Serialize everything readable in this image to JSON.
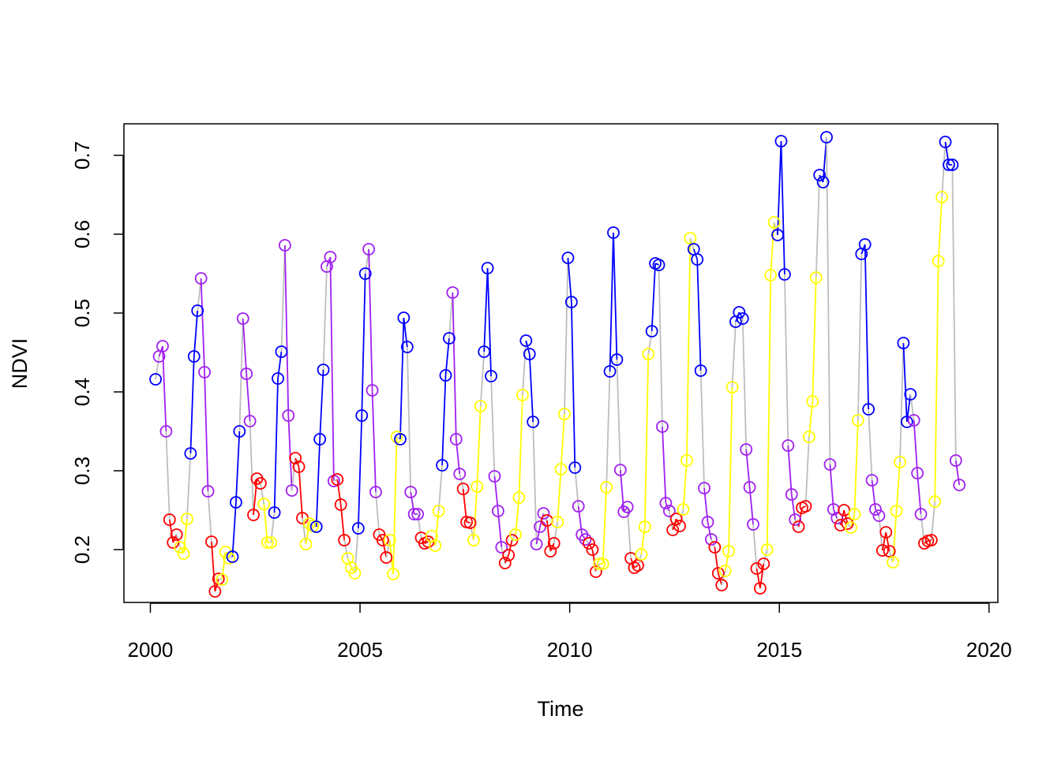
{
  "chart_data": {
    "type": "line",
    "title": "",
    "xlabel": "Time",
    "ylabel": "NDVI",
    "xlim": [
      1999.37,
      2020.21
    ],
    "ylim": [
      0.133,
      0.74
    ],
    "x_ticks": [
      2000,
      2005,
      2010,
      2015,
      2020
    ],
    "x_tick_labels": [
      "2000",
      "2005",
      "2010",
      "2015",
      "2020"
    ],
    "y_ticks": [
      0.2,
      0.3,
      0.4,
      0.5,
      0.6,
      0.7
    ],
    "y_tick_labels": [
      "0.2",
      "0.3",
      "0.4",
      "0.5",
      "0.6",
      "0.7"
    ],
    "series_start": 2000.125,
    "series_frequency": 12,
    "season_colors": {
      "winter": "#0000FF",
      "spring": "#A020F0",
      "summer": "#FF0000",
      "autumn": "#FFFF00"
    },
    "connector_color": "#BEBEBE",
    "seasons": [
      "winter",
      "spring",
      "spring",
      "spring",
      "summer",
      "summer",
      "summer",
      "autumn",
      "autumn",
      "autumn",
      "winter",
      "winter"
    ],
    "values": [
      0.416,
      0.445,
      0.458,
      0.35,
      0.238,
      0.209,
      0.219,
      0.203,
      0.195,
      0.239,
      0.322,
      0.445,
      0.503,
      0.544,
      0.425,
      0.274,
      0.21,
      0.147,
      0.163,
      0.162,
      0.197,
      0.189,
      0.191,
      0.26,
      0.35,
      0.493,
      0.423,
      0.363,
      0.244,
      0.29,
      0.284,
      0.258,
      0.209,
      0.209,
      0.247,
      0.417,
      0.451,
      0.586,
      0.37,
      0.275,
      0.316,
      0.305,
      0.24,
      0.207,
      0.233,
      0.23,
      0.229,
      0.34,
      0.428,
      0.559,
      0.571,
      0.287,
      0.289,
      0.257,
      0.212,
      0.189,
      0.177,
      0.17,
      0.227,
      0.37,
      0.55,
      0.581,
      0.402,
      0.273,
      0.219,
      0.212,
      0.19,
      0.212,
      0.169,
      0.343,
      0.34,
      0.494,
      0.457,
      0.273,
      0.245,
      0.245,
      0.215,
      0.208,
      0.21,
      0.217,
      0.205,
      0.249,
      0.307,
      0.421,
      0.468,
      0.526,
      0.34,
      0.296,
      0.277,
      0.235,
      0.234,
      0.212,
      0.28,
      0.382,
      0.451,
      0.557,
      0.42,
      0.293,
      0.249,
      0.203,
      0.183,
      0.193,
      0.212,
      0.219,
      0.266,
      0.396,
      0.465,
      0.448,
      0.362,
      0.207,
      0.229,
      0.246,
      0.237,
      0.198,
      0.208,
      0.235,
      0.302,
      0.372,
      0.57,
      0.514,
      0.304,
      0.255,
      0.219,
      0.213,
      0.208,
      0.2,
      0.172,
      0.182,
      0.182,
      0.279,
      0.426,
      0.602,
      0.441,
      0.301,
      0.248,
      0.254,
      0.189,
      0.177,
      0.18,
      0.194,
      0.229,
      0.448,
      0.477,
      0.563,
      0.561,
      0.356,
      0.259,
      0.249,
      0.225,
      0.239,
      0.23,
      0.251,
      0.313,
      0.595,
      0.581,
      0.568,
      0.427,
      0.278,
      0.235,
      0.213,
      0.203,
      0.17,
      0.155,
      0.173,
      0.198,
      0.406,
      0.489,
      0.501,
      0.493,
      0.327,
      0.279,
      0.232,
      0.176,
      0.151,
      0.182,
      0.2,
      0.548,
      0.615,
      0.599,
      0.718,
      0.549,
      0.332,
      0.27,
      0.238,
      0.229,
      0.253,
      0.255,
      0.343,
      0.388,
      0.545,
      0.675,
      0.666,
      0.723,
      0.308,
      0.251,
      0.24,
      0.231,
      0.25,
      0.233,
      0.228,
      0.245,
      0.364,
      0.575,
      0.587,
      0.378,
      0.288,
      0.251,
      0.243,
      0.199,
      0.222,
      0.198,
      0.184,
      0.249,
      0.311,
      0.462,
      0.362,
      0.397,
      0.364,
      0.297,
      0.245,
      0.208,
      0.211,
      0.212,
      0.261,
      0.566,
      0.647,
      0.717,
      0.688,
      0.688,
      0.313,
      0.282
    ]
  }
}
